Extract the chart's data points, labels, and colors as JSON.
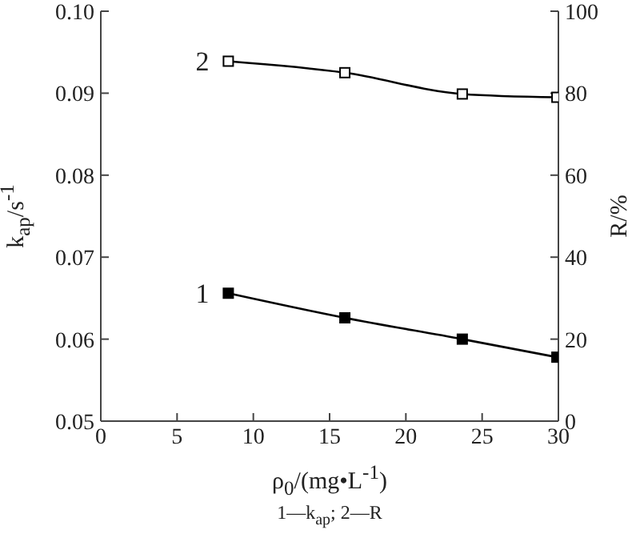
{
  "chart_data": {
    "type": "line",
    "xlabel": "ρ$_{0}$/(mg•L$^{-1}$)",
    "ylabel": "k$_{ap}$/s$^{-1}$",
    "y2label": "R/%",
    "series": [
      {
        "name": "1",
        "color": "#000000",
        "x": [
          8.36,
          16.0,
          23.7,
          29.9
        ],
        "values": [
          0.0656,
          0.0626,
          0.06,
          0.0578
        ]
      },
      {
        "name": "2",
        "color": "#000000",
        "axis": "y2",
        "x": [
          8.36,
          16.0,
          23.7,
          29.9
        ],
        "values": [
          87.8,
          85.0,
          79.8,
          79.0
        ]
      }
    ],
    "xlim": [
      0,
      30
    ],
    "xticks": [
      0,
      5,
      10,
      15,
      20,
      25,
      30
    ],
    "ylim": [
      0.05,
      0.1
    ],
    "yticks": [
      0.05,
      0.06,
      0.07,
      0.08,
      0.09,
      {
        "value": 0.1,
        "label": "0.10"
      }
    ],
    "y2lim": [
      0,
      100
    ],
    "y2ticks": [
      0,
      20,
      40,
      60,
      80,
      100
    ],
    "marker": "square",
    "annotations": [
      "1—k$_{ap}$; 2—R"
    ]
  }
}
